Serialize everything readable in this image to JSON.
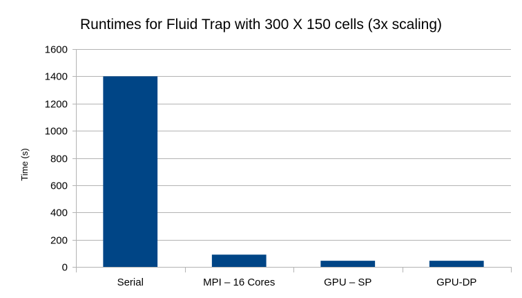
{
  "chart_data": {
    "type": "bar",
    "title": "Runtimes for Fluid Trap with 300 X 150 cells (3x scaling)",
    "xlabel": "",
    "ylabel": "Time (s)",
    "categories": [
      "Serial",
      "MPI – 16 Cores",
      "GPU – SP",
      "GPU-DP"
    ],
    "values": [
      1400,
      90,
      45,
      45
    ],
    "ylim": [
      0,
      1600
    ],
    "yticks": [
      0,
      200,
      400,
      600,
      800,
      1000,
      1200,
      1400,
      1600
    ],
    "grid": true,
    "legend": "none",
    "bar_color": "#004586",
    "grid_color": "#b3b3b3"
  }
}
